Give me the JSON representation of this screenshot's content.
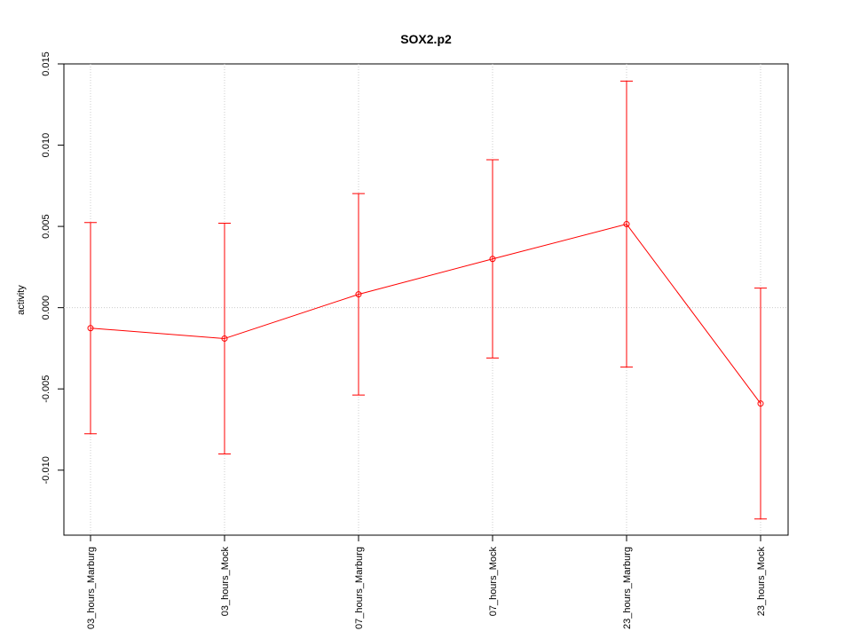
{
  "chart_data": {
    "type": "errorline",
    "title": "SOX2.p2",
    "y_label": "activity",
    "categories": [
      "03_hours_Marburg",
      "03_hours_Mock",
      "07_hours_Marburg",
      "07_hours_Mock",
      "23_hours_Marburg",
      "23_hours_Mock"
    ],
    "series": [
      {
        "name": "SOX2.p2",
        "color": "#ff0000",
        "values": [
          -0.00126,
          -0.0019,
          0.00082,
          0.003,
          0.00514,
          -0.0059
        ],
        "errors": [
          0.0065,
          0.0071,
          0.0062,
          0.0061,
          0.0088,
          0.0071
        ]
      }
    ],
    "ylim": [
      -0.014,
      0.015
    ],
    "yticks": [
      {
        "value": -0.01,
        "label": "-0.010"
      },
      -0.005,
      {
        "value": 0,
        "label": "0.000"
      },
      0.005,
      {
        "value": 0.01,
        "label": "0.010"
      },
      0.015
    ],
    "hlines": [
      0
    ],
    "grid": true
  }
}
